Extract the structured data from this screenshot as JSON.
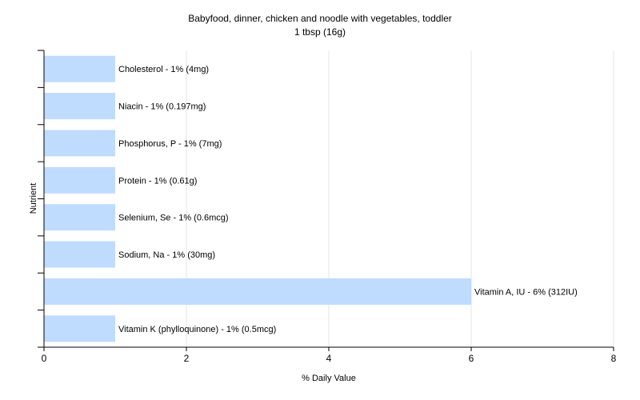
{
  "chart_data": {
    "type": "bar",
    "orientation": "horizontal",
    "title": "Babyfood, dinner, chicken and noodle with vegetables, toddler",
    "subtitle": "1 tbsp (16g)",
    "xlabel": "% Daily Value",
    "ylabel": "Nutrient",
    "xlim": [
      0,
      8
    ],
    "xticks": [
      0,
      2,
      4,
      6,
      8
    ],
    "grid": true,
    "legend": "none",
    "bar_color": "#bfdcff",
    "categories": [
      "Cholesterol",
      "Niacin",
      "Phosphorus, P",
      "Protein",
      "Selenium, Se",
      "Sodium, Na",
      "Vitamin A, IU",
      "Vitamin K (phylloquinone)"
    ],
    "values": [
      1,
      1,
      1,
      1,
      1,
      1,
      6,
      1
    ],
    "labels": [
      "Cholesterol - 1% (4mg)",
      "Niacin - 1% (0.197mg)",
      "Phosphorus, P - 1% (7mg)",
      "Protein - 1% (0.61g)",
      "Selenium, Se - 1% (0.6mcg)",
      "Sodium, Na - 1% (30mg)",
      "Vitamin A, IU - 6% (312IU)",
      "Vitamin K (phylloquinone) - 1% (0.5mcg)"
    ]
  }
}
